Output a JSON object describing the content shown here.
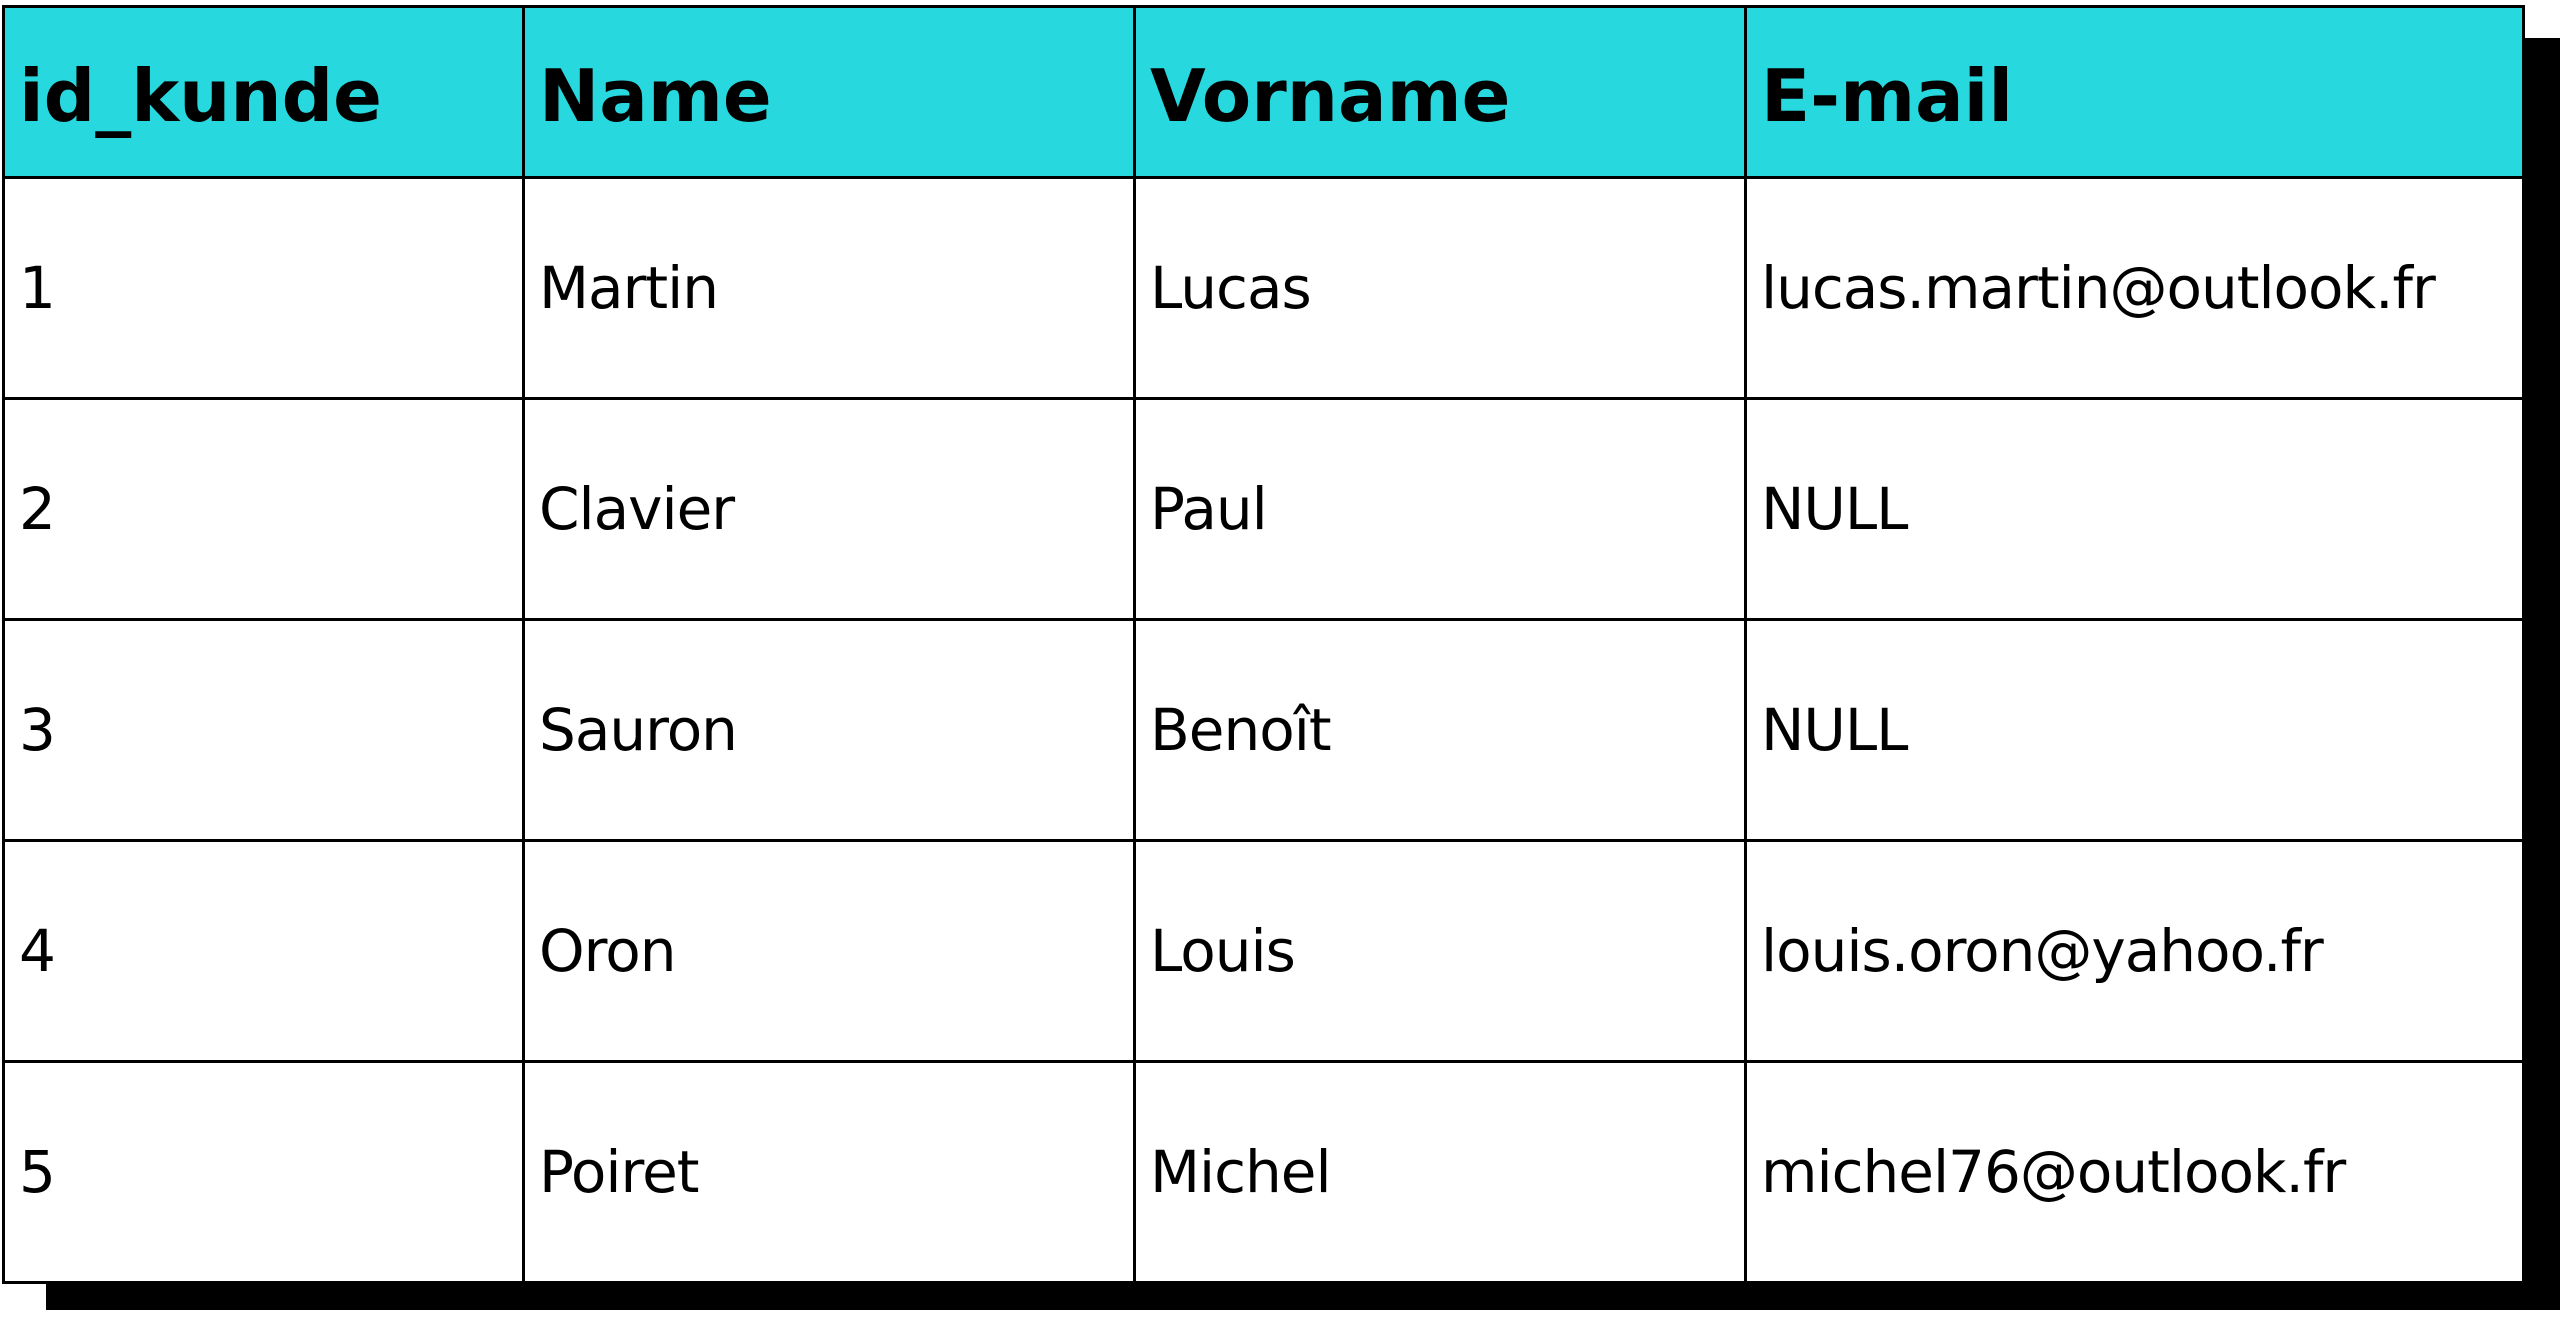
{
  "colors": {
    "header_bg": "#27d8de",
    "shadow": "#000000",
    "border": "#000000"
  },
  "table": {
    "columns": [
      "id_kunde",
      "Name",
      "Vorname",
      "E-mail"
    ],
    "rows": [
      [
        "1",
        "Martin",
        "Lucas",
        "lucas.martin@outlook.fr"
      ],
      [
        "2",
        "Clavier",
        "Paul",
        "NULL"
      ],
      [
        "3",
        "Sauron",
        "Benoît",
        "NULL"
      ],
      [
        "4",
        "Oron",
        "Louis",
        "louis.oron@yahoo.fr"
      ],
      [
        "5",
        "Poiret",
        "Michel",
        "michel76@outlook.fr"
      ]
    ]
  }
}
